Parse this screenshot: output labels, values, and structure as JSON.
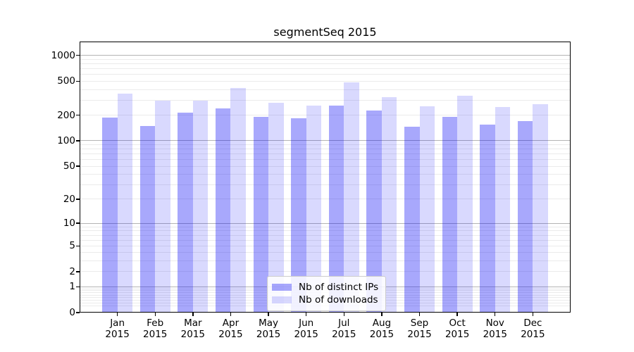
{
  "chart_data": {
    "type": "bar",
    "title": "segmentSeq 2015",
    "categories": [
      "Jan",
      "Feb",
      "Mar",
      "Apr",
      "May",
      "Jun",
      "Jul",
      "Aug",
      "Sep",
      "Oct",
      "Nov",
      "Dec"
    ],
    "x_year_label": "2015",
    "series": [
      {
        "name": "Nb of distinct IPs",
        "color": "rgba(0,0,246,0.34)",
        "values": [
          188,
          148,
          214,
          238,
          192,
          182,
          257,
          225,
          145,
          190,
          155,
          171
        ]
      },
      {
        "name": "Nb of downloads",
        "color": "rgba(0,0,246,0.15)",
        "values": [
          359,
          297,
          298,
          419,
          277,
          260,
          488,
          323,
          252,
          335,
          248,
          268
        ]
      }
    ],
    "yscale": "log1p",
    "ylim": [
      0,
      1450
    ],
    "y_ticks": [
      0,
      1,
      2,
      5,
      10,
      20,
      50,
      100,
      200,
      500,
      1000
    ],
    "grid": {
      "major": [
        1,
        10,
        100,
        1000
      ],
      "minor": [
        0.2,
        0.3,
        0.4,
        0.5,
        0.6,
        0.7,
        0.8,
        0.9,
        2,
        3,
        4,
        5,
        6,
        7,
        8,
        9,
        20,
        30,
        40,
        50,
        60,
        70,
        80,
        90,
        200,
        300,
        400,
        500,
        600,
        700,
        800,
        900
      ]
    },
    "legend_position": "lower center",
    "colors": {
      "major_grid": "#b4b4b4",
      "minor_grid": "#ebebeb",
      "axis": "#000000",
      "text": "#000000",
      "background": "#ffffff"
    }
  }
}
